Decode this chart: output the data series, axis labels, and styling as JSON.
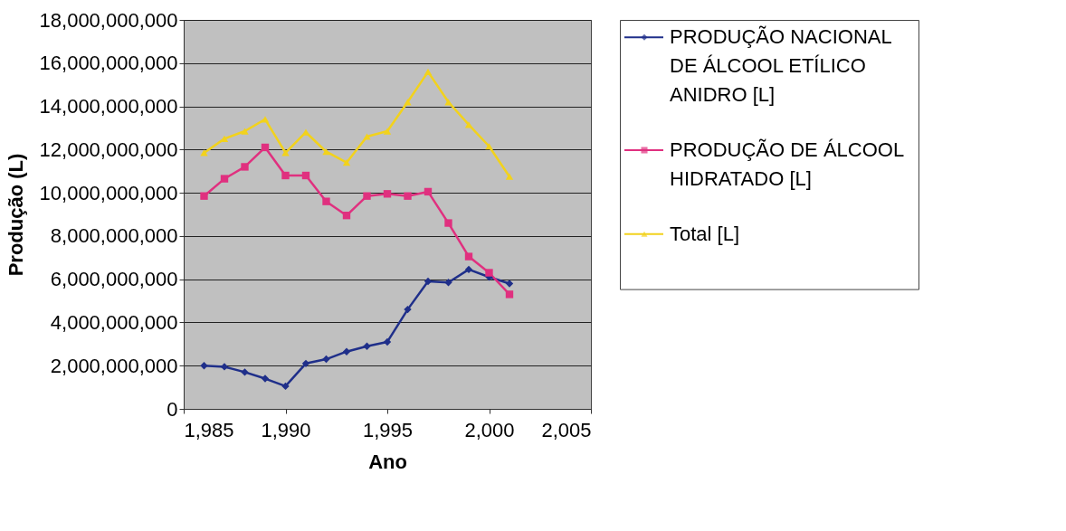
{
  "chart_data": {
    "type": "line",
    "xlabel": "Ano",
    "ylabel": "Produção (L)",
    "x": [
      1986,
      1987,
      1988,
      1989,
      1990,
      1991,
      1992,
      1993,
      1994,
      1995,
      1996,
      1997,
      1998,
      1999,
      2000,
      2001
    ],
    "series": [
      {
        "name": "PRODUÇÃO NACIONAL DE ÁLCOOL ETÍLICO ANIDRO [L]",
        "color": "#1f2f8a",
        "marker": "diamond",
        "values": [
          2000000000,
          1950000000,
          1700000000,
          1400000000,
          1050000000,
          2100000000,
          2300000000,
          2650000000,
          2900000000,
          3100000000,
          4600000000,
          5900000000,
          5850000000,
          6450000000,
          6100000000,
          5800000000
        ]
      },
      {
        "name": "PRODUÇÃO DE ÁLCOOL HIDRATADO [L]",
        "color": "#e0307f",
        "marker": "square",
        "values": [
          9850000000,
          10650000000,
          11200000000,
          12100000000,
          10800000000,
          10800000000,
          9600000000,
          8950000000,
          9850000000,
          9950000000,
          9850000000,
          10050000000,
          8600000000,
          7050000000,
          6300000000,
          5300000000
        ]
      },
      {
        "name": "Total  [L]",
        "color": "#f2d21c",
        "marker": "triangle",
        "values": [
          11850000000,
          12500000000,
          12850000000,
          13400000000,
          11850000000,
          12800000000,
          11900000000,
          11400000000,
          12600000000,
          12850000000,
          14200000000,
          15600000000,
          14200000000,
          13150000000,
          12150000000,
          10750000000
        ]
      }
    ],
    "xlim": [
      1985,
      2005
    ],
    "xticks": [
      {
        "value": 1985,
        "label": "1,985"
      },
      {
        "value": 1990,
        "label": "1,990"
      },
      {
        "value": 1995,
        "label": "1,995"
      },
      {
        "value": 2000,
        "label": "2,000"
      },
      {
        "value": 2005,
        "label": "2,005"
      }
    ],
    "ylim": [
      0,
      18000000000
    ],
    "yticks": [
      0,
      {
        "value": 2000000000,
        "label": "2,000,000,000"
      },
      {
        "value": 4000000000,
        "label": "4,000,000,000"
      },
      {
        "value": 6000000000,
        "label": "6,000,000,000"
      },
      {
        "value": 8000000000,
        "label": "8,000,000,000"
      },
      {
        "value": 10000000000,
        "label": "10,000,000,000"
      },
      {
        "value": 12000000000,
        "label": "12,000,000,000"
      },
      {
        "value": 14000000000,
        "label": "14,000,000,000"
      },
      {
        "value": 16000000000,
        "label": "16,000,000,000"
      },
      {
        "value": 18000000000,
        "label": "18,000,000,000"
      }
    ],
    "grid": "y",
    "legend": "right"
  }
}
